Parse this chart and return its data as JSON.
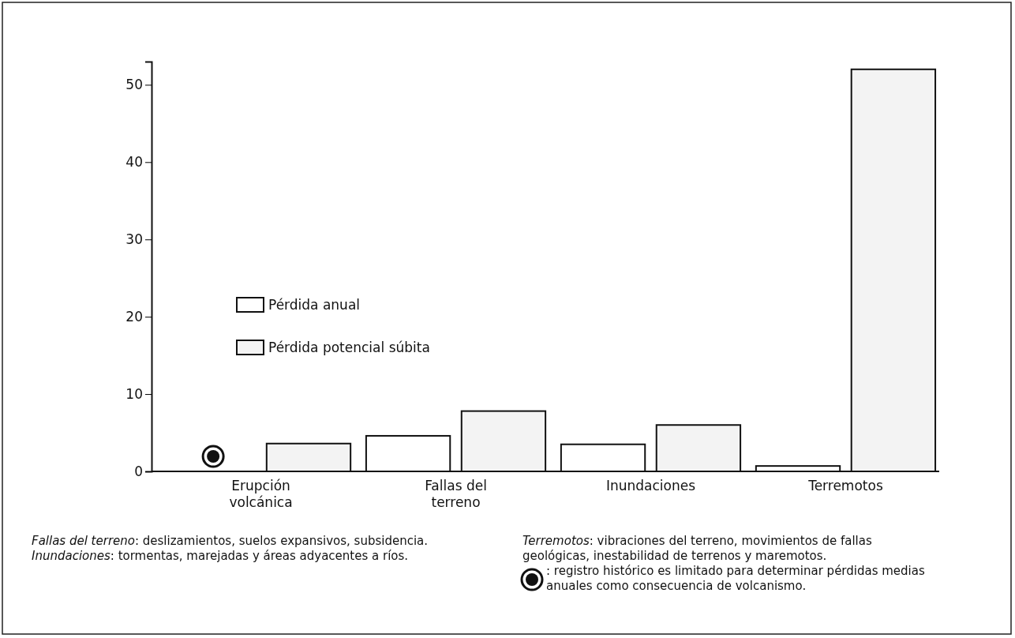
{
  "chart_data": {
    "type": "bar",
    "categories": [
      "Erupción\nvolcánica",
      "Fallas del\nterreno",
      "Inundaciones",
      "Terremotos"
    ],
    "series": [
      {
        "name": "Pérdida anual",
        "color": "#ffffff",
        "values": [
          null,
          4.6,
          3.5,
          0.7
        ]
      },
      {
        "name": "Pérdida potencial súbita",
        "color": "#f3f3f3",
        "values": [
          3.6,
          7.8,
          6,
          52
        ]
      }
    ],
    "ylim": [
      0,
      53
    ],
    "yticks": [
      0,
      10,
      20,
      30,
      40,
      50
    ],
    "grid": false,
    "legend": "left",
    "annotations": [
      "Fallas del terreno: deslizamientos, suelos expansivos, subsidencia.",
      "Inundaciones: tormentas, marejadas y áreas adyacentes a ríos.",
      "Terremotos: vibraciones del terreno, movimientos de fallas geológicas, inestabilidad de terrenos y maremotos.",
      ": registro histórico es limitado para determinar pérdidas medias anuales como consecuencia de volcanismo."
    ]
  }
}
